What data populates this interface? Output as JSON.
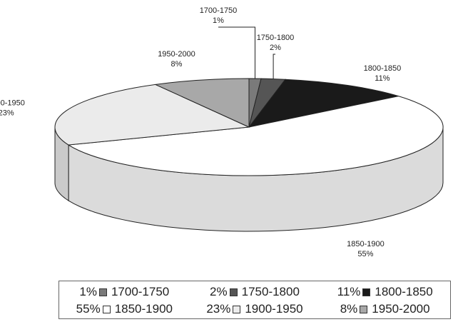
{
  "chart_data": {
    "type": "pie",
    "title": "",
    "categories": [
      "1700-1750",
      "1750-1800",
      "1800-1850",
      "1850-1900",
      "1900-1950",
      "1950-2000"
    ],
    "values": [
      1,
      2,
      11,
      55,
      23,
      8
    ],
    "value_labels": [
      "1%",
      "2%",
      "11%",
      "55%",
      "23%",
      "8%"
    ],
    "colors": [
      "#7a7a7a",
      "#555555",
      "#1a1a1a",
      "#ffffff",
      "#ebebeb",
      "#a8a8a8"
    ],
    "legend_position": "bottom",
    "style": "3d-pie"
  }
}
